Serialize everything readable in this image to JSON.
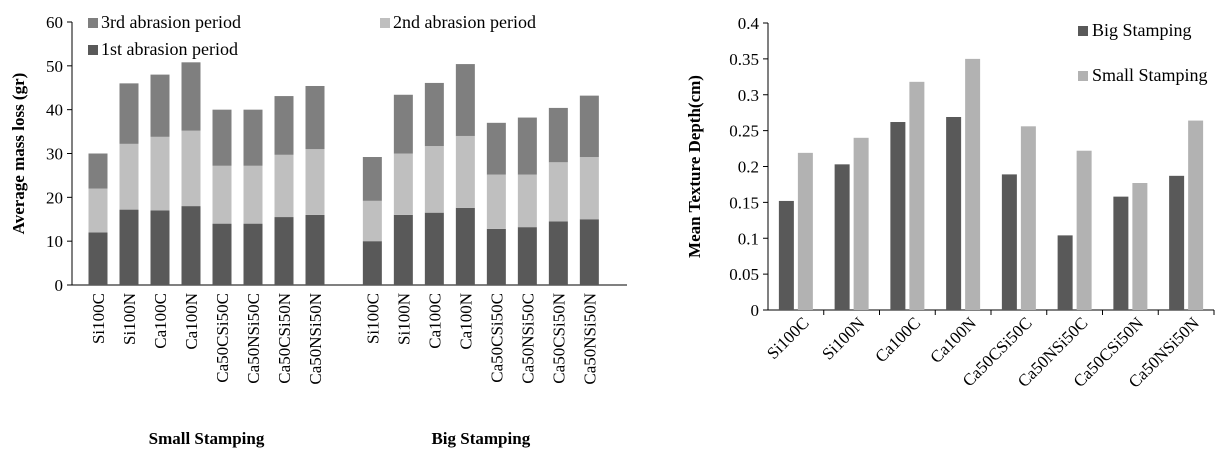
{
  "chart_data": [
    {
      "type": "bar",
      "stacked": true,
      "ylabel": "Average mass loss (gr)",
      "ylim": [
        0,
        60
      ],
      "yticks": [
        "0",
        "10",
        "20",
        "30",
        "40",
        "50",
        "60"
      ],
      "grid": false,
      "legend_position": "top",
      "groups": [
        {
          "name": "Small Stamping",
          "categories": [
            "Si100C",
            "Si100N",
            "Ca100C",
            "Ca100N",
            "Ca50CSi50C",
            "Ca50NSi50C",
            "Ca50CSi50N",
            "Ca50NSi50N"
          ]
        },
        {
          "name": "Big Stamping",
          "categories": [
            "Si100C",
            "Si100N",
            "Ca100C",
            "Ca100N",
            "Ca50CSi50C",
            "Ca50NSi50C",
            "Ca50CSi50N",
            "Ca50NSi50N"
          ]
        }
      ],
      "series": [
        {
          "name": "1st abrasion period",
          "color": "#595959",
          "values": [
            12,
            17.2,
            17,
            18,
            14,
            14,
            15.5,
            16,
            10,
            16,
            16.5,
            17.6,
            12.8,
            13.2,
            14.5,
            15
          ]
        },
        {
          "name": "2nd abrasion period",
          "color": "#bfbfbf",
          "values": [
            10,
            15,
            16.8,
            17.2,
            13.2,
            13.2,
            14.2,
            15,
            9.2,
            14,
            15.2,
            16.4,
            12.4,
            12,
            13.5,
            14.2
          ]
        },
        {
          "name": "3rd  abrasion period",
          "color": "#7f7f7f",
          "values": [
            8,
            13.8,
            14.2,
            15.6,
            12.8,
            12.8,
            13.4,
            14.4,
            10,
            13.4,
            14.4,
            16.4,
            11.8,
            13,
            12.4,
            14
          ]
        }
      ],
      "legend_order": [
        "3rd  abrasion period",
        "2nd abrasion period",
        "1st abrasion period"
      ]
    },
    {
      "type": "bar",
      "stacked": false,
      "ylabel": "Mean Texture Depth(cm)",
      "ylim": [
        0,
        0.4
      ],
      "yticks": [
        "0",
        "0.05",
        "0.1",
        "0.15",
        "0.2",
        "0.25",
        "0.3",
        "0.35",
        "0.4"
      ],
      "grid": false,
      "legend_position": "top-right",
      "categories": [
        "Si100C",
        "Si100N",
        "Ca100C",
        "Ca100N",
        "Ca50CSi50C",
        "Ca50NSi50C",
        "Ca50CSi50N",
        "Ca50NSi50N"
      ],
      "series": [
        {
          "name": "Big Stamping",
          "color": "#595959",
          "values": [
            0.152,
            0.203,
            0.262,
            0.269,
            0.189,
            0.104,
            0.158,
            0.187
          ]
        },
        {
          "name": "Small Stamping",
          "color": "#b2b2b2",
          "values": [
            0.219,
            0.24,
            0.318,
            0.35,
            0.256,
            0.222,
            0.177,
            0.264
          ]
        }
      ]
    }
  ]
}
